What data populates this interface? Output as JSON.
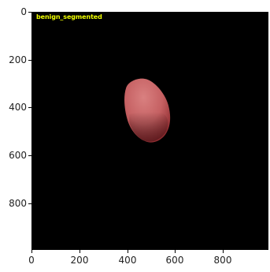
{
  "image": {
    "label": "benign_segmented",
    "label_color": "#f0ff00",
    "background_color": "#000000",
    "lesion_colors": {
      "light": "#d98080",
      "mid": "#c56062",
      "dark": "#8d2a2e"
    }
  },
  "axes": {
    "x_ticks": [
      "0",
      "200",
      "400",
      "600",
      "800"
    ],
    "y_ticks": [
      "0",
      "200",
      "400",
      "600",
      "800"
    ]
  }
}
